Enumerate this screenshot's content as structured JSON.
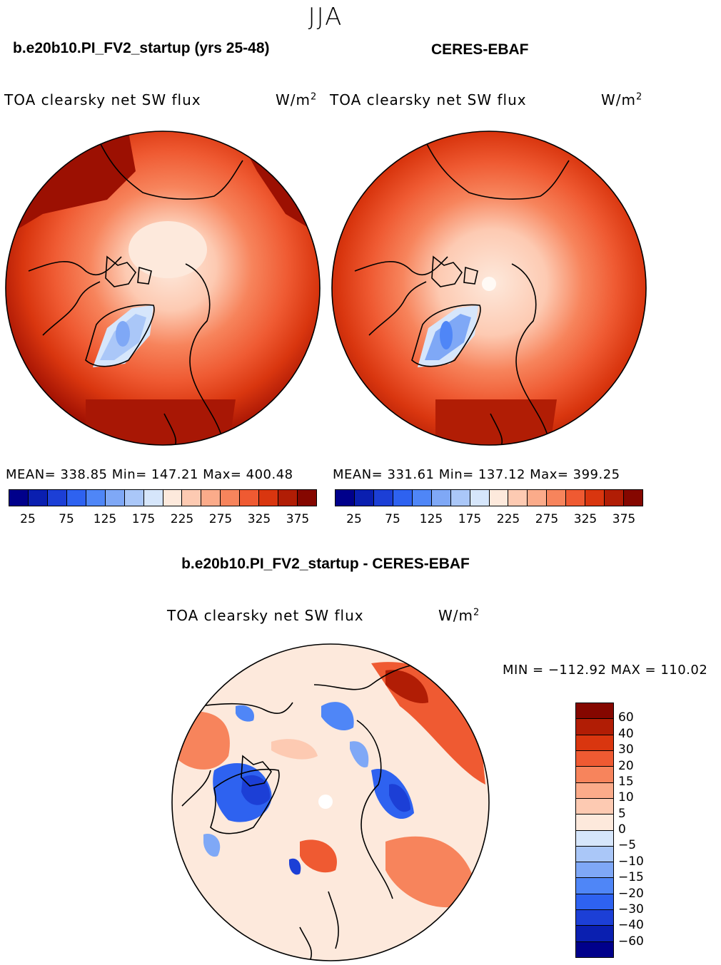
{
  "season": "JJA",
  "panels": [
    {
      "case": "b.e20b10.PI_FV2_startup (yrs 25-48)",
      "variable": "TOA clearsky net SW flux",
      "units_base": "W/m",
      "units_exp": "2",
      "stats": "MEAN= 338.85   Min= 147.21   Max= 400.48"
    },
    {
      "case": "CERES-EBAF",
      "variable": "TOA clearsky net SW flux",
      "units_base": "W/m",
      "units_exp": "2",
      "stats": "MEAN= 331.61   Min= 137.12   Max= 399.25"
    }
  ],
  "diff": {
    "case": "b.e20b10.PI_FV2_startup - CERES-EBAF",
    "variable": "TOA clearsky net SW flux",
    "units_base": "W/m",
    "units_exp": "2",
    "stats": "MIN = −112.92  MAX = 110.02"
  },
  "colorbar_abs": {
    "labels": [
      "25",
      "75",
      "125",
      "175",
      "225",
      "275",
      "325",
      "375"
    ],
    "colors": [
      "#00008b",
      "#0a1fb0",
      "#1c3fd6",
      "#2e62f0",
      "#4f86f7",
      "#7fa8f6",
      "#aac7f8",
      "#d6e6fb",
      "#fde9dc",
      "#fdcab2",
      "#fbab8a",
      "#f7845c",
      "#ef5a32",
      "#d9360f",
      "#b11d05",
      "#850700"
    ]
  },
  "colorbar_diff": {
    "labels": [
      "60",
      "40",
      "30",
      "20",
      "15",
      "10",
      "5",
      "0",
      "−5",
      "−10",
      "−15",
      "−20",
      "−30",
      "−40",
      "−60"
    ],
    "colors": [
      "#850700",
      "#b11d05",
      "#d9360f",
      "#ef5a32",
      "#f7845c",
      "#fbab8a",
      "#fdcab2",
      "#fde9dc",
      "#d6e6fb",
      "#aac7f8",
      "#7fa8f6",
      "#4f86f7",
      "#2e62f0",
      "#1c3fd6",
      "#0a1fb0",
      "#00008b"
    ]
  }
}
